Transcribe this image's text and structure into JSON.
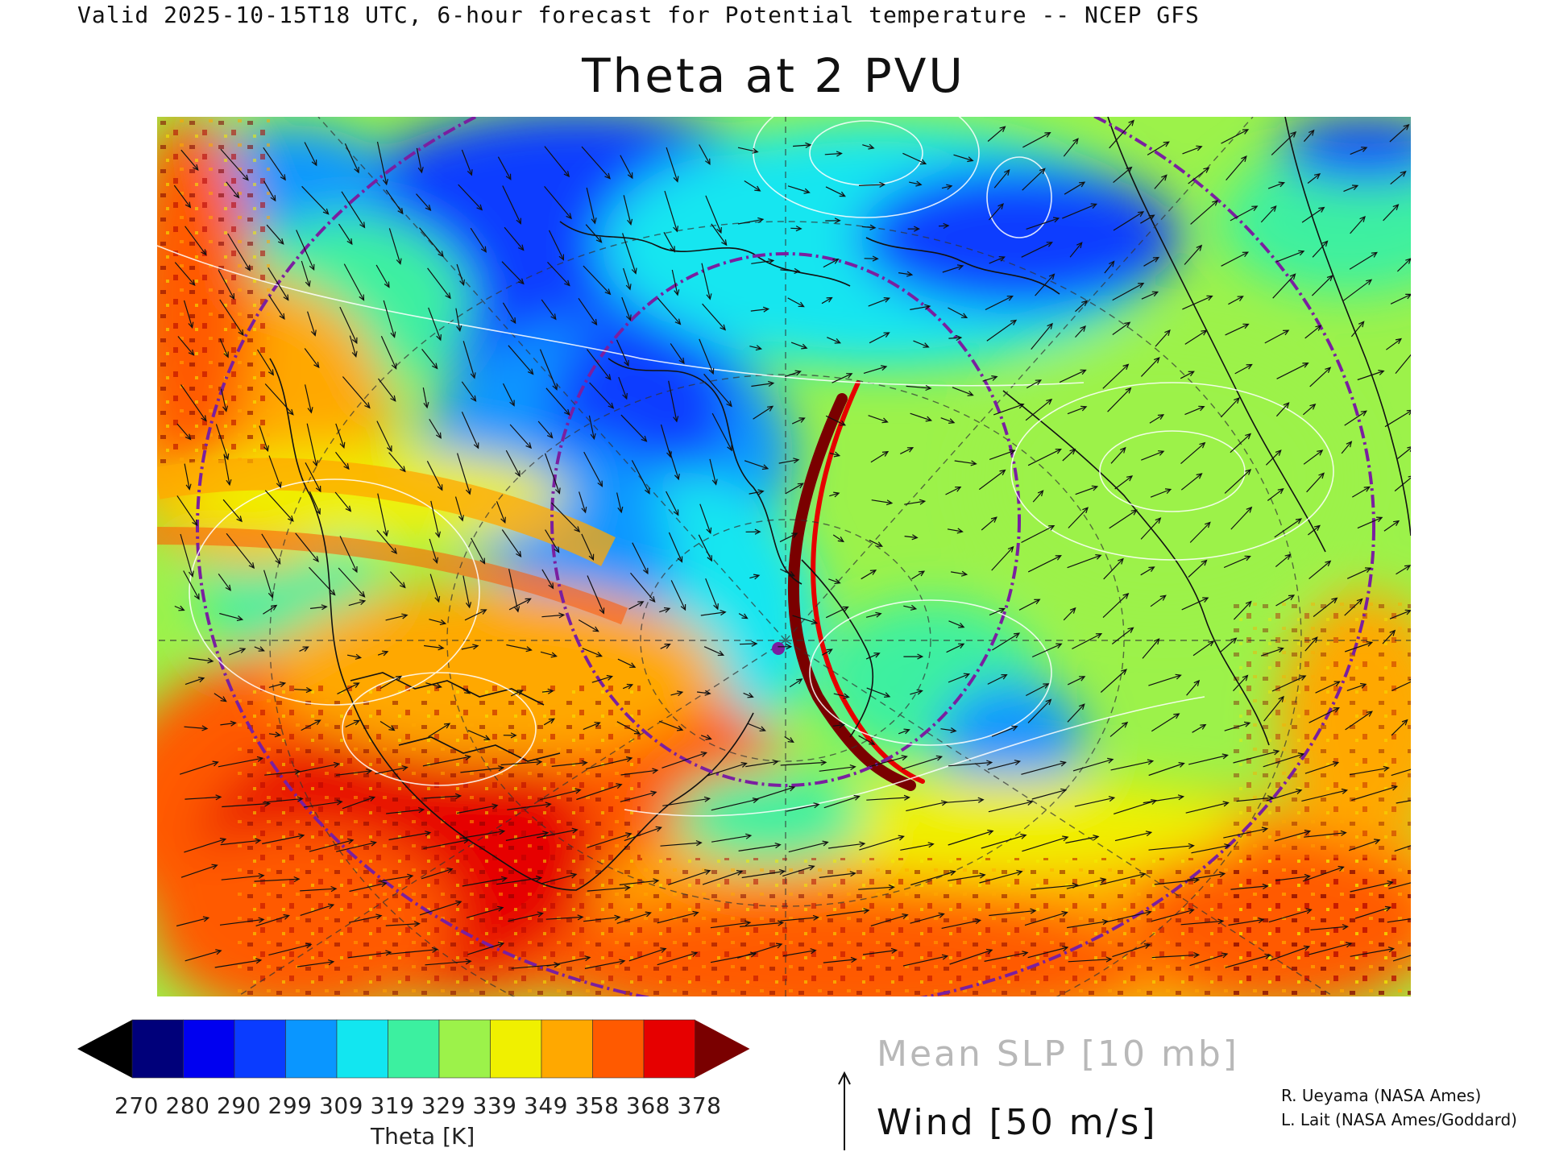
{
  "header": {
    "valid_line": "Valid 2025-10-15T18 UTC, 6-hour forecast for Potential temperature -- NCEP GFS",
    "title": "Theta at 2 PVU"
  },
  "colorbar": {
    "ticks": [
      "270",
      "280",
      "290",
      "299",
      "309",
      "319",
      "329",
      "339",
      "349",
      "358",
      "368",
      "378"
    ],
    "label": "Theta [K]",
    "colors": [
      "#000000",
      "#00007a",
      "#0000f0",
      "#0a3cff",
      "#0a96ff",
      "#12e6f0",
      "#3cf0a0",
      "#9cf24a",
      "#f0f000",
      "#ffa800",
      "#ff5a00",
      "#e60000",
      "#7a0000"
    ]
  },
  "legend": {
    "slp": "Mean SLP [10 mb]",
    "wind": "Wind [50 m/s]"
  },
  "credits": {
    "line1": "R. Ueyama (NASA Ames)",
    "line2": "L. Lait (NASA Ames/Goddard)"
  }
}
